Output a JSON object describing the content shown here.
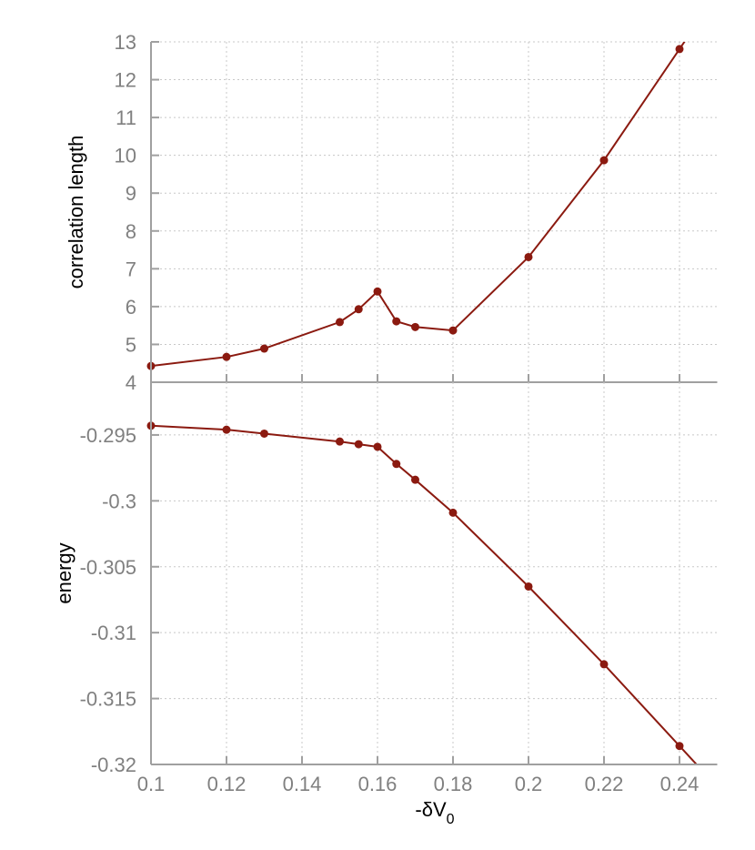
{
  "figure": {
    "xlabel_main": "-δV",
    "xlabel_sub": "0",
    "top_ylabel": "correlation length",
    "bottom_ylabel": "energy"
  },
  "colors": {
    "series": "#8b1a10",
    "axis": "#a0a0a0",
    "grid": "#c8c8c8",
    "tick_label": "#808080"
  },
  "chart_data": [
    {
      "type": "line",
      "title": "",
      "xlabel": "-δV_0",
      "ylabel": "correlation length",
      "xlim": [
        0.1,
        0.25
      ],
      "ylim": [
        4,
        13
      ],
      "grid": true,
      "x_ticks": [
        "0.1",
        "0.12",
        "0.14",
        "0.16",
        "0.18",
        "0.2",
        "0.22",
        "0.24"
      ],
      "y_ticks": [
        "4",
        "5",
        "6",
        "7",
        "8",
        "9",
        "10",
        "11",
        "12",
        "13"
      ],
      "x": [
        0.1,
        0.12,
        0.13,
        0.15,
        0.155,
        0.16,
        0.165,
        0.17,
        0.18,
        0.2,
        0.22,
        0.24
      ],
      "series": [
        {
          "name": "correlation length",
          "values": [
            4.43,
            4.67,
            4.89,
            5.59,
            5.93,
            6.4,
            5.61,
            5.46,
            5.37,
            7.31,
            9.87,
            12.81
          ]
        }
      ]
    },
    {
      "type": "line",
      "title": "",
      "xlabel": "-δV_0",
      "ylabel": "energy",
      "xlim": [
        0.1,
        0.25
      ],
      "ylim": [
        -0.32,
        -0.291
      ],
      "grid": true,
      "x_ticks": [
        "0.1",
        "0.12",
        "0.14",
        "0.16",
        "0.18",
        "0.2",
        "0.22",
        "0.24"
      ],
      "y_ticks": [
        "-0.32",
        "-0.315",
        "-0.31",
        "-0.305",
        "-0.3",
        "-0.295"
      ],
      "x": [
        0.1,
        0.12,
        0.13,
        0.15,
        0.155,
        0.16,
        0.165,
        0.17,
        0.18,
        0.2,
        0.22,
        0.24
      ],
      "series": [
        {
          "name": "energy",
          "values": [
            -0.2943,
            -0.2946,
            -0.2949,
            -0.2955,
            -0.2957,
            -0.2959,
            -0.2972,
            -0.2984,
            -0.3009,
            -0.3065,
            -0.3124,
            -0.3186
          ]
        }
      ]
    }
  ]
}
